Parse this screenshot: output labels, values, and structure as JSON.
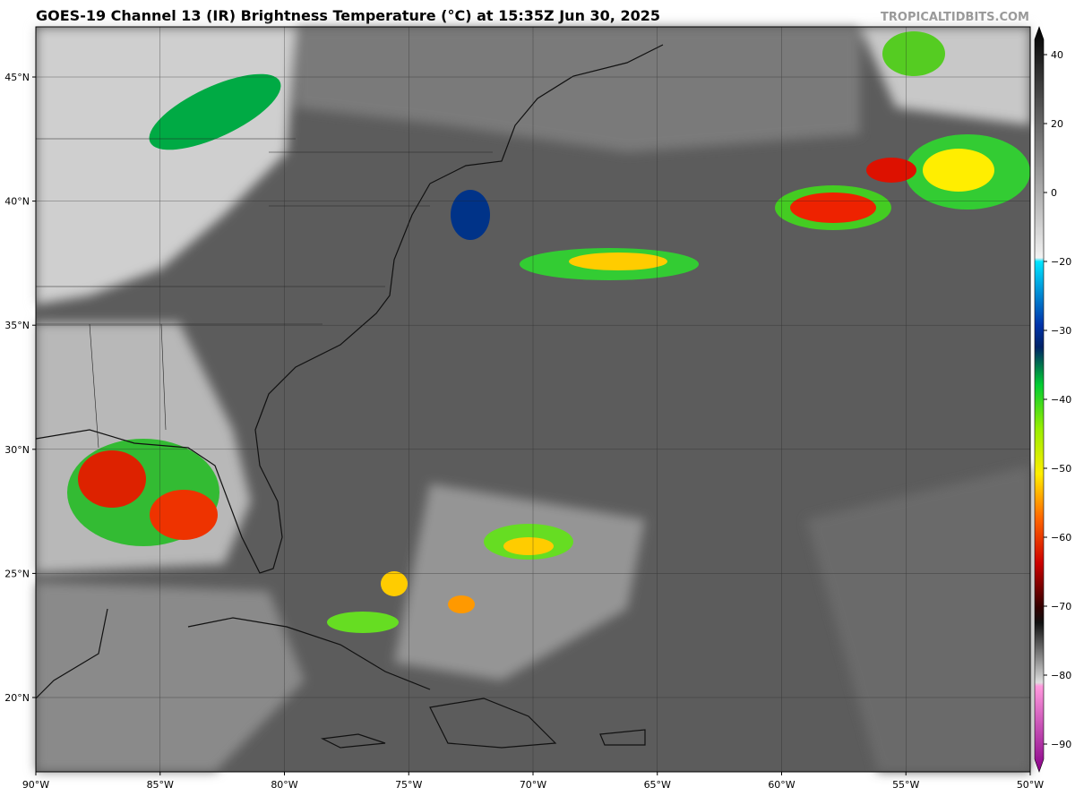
{
  "header": {
    "title": "GOES-19 Channel 13 (IR) Brightness Temperature (°C) at 15:35Z Jun 30, 2025",
    "credit": "TROPICALTIDBITS.COM"
  },
  "map": {
    "lat_labels": [
      "45°N",
      "40°N",
      "35°N",
      "30°N",
      "25°N",
      "20°N"
    ],
    "lon_labels": [
      "90°W",
      "85°W",
      "80°W",
      "75°W",
      "70°W",
      "65°W",
      "60°W",
      "55°W",
      "50°W"
    ]
  },
  "colorbar": {
    "labels": [
      "40",
      "20",
      "0",
      "−20",
      "−30",
      "−40",
      "−50",
      "−60",
      "−70",
      "−80",
      "−90"
    ]
  }
}
